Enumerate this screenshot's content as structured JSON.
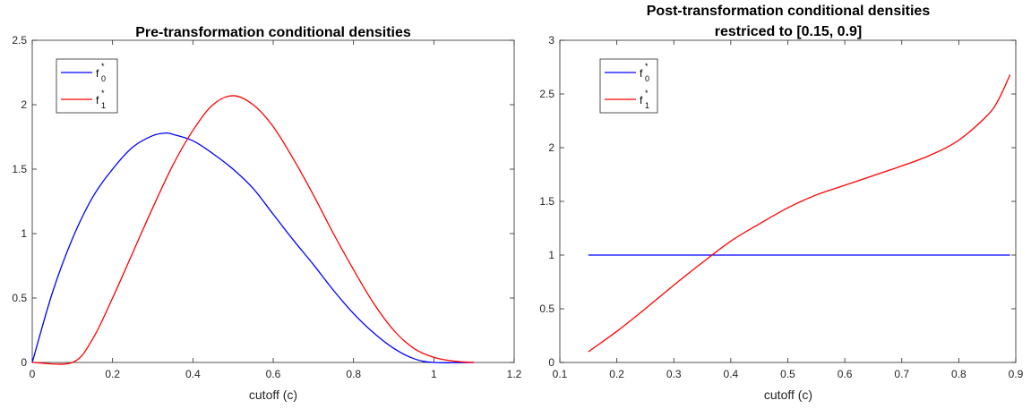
{
  "chart_data": [
    {
      "type": "line",
      "title": "Pre-transformation conditional densities",
      "xlabel": "cutoff (c)",
      "ylabel": "",
      "xlim": [
        0,
        1.2
      ],
      "ylim": [
        0,
        2.5
      ],
      "xticks": [
        "0",
        "0.2",
        "0.4",
        "0.6",
        "0.8",
        "1",
        "1.2"
      ],
      "yticks": [
        "0",
        "0.5",
        "1",
        "1.5",
        "2",
        "2.5"
      ],
      "legend_placement": "top-left",
      "grid": false,
      "series": [
        {
          "name": "f0*",
          "color": "#0000ff",
          "x": [
            0,
            0.05,
            0.1,
            0.15,
            0.2,
            0.25,
            0.3,
            0.333,
            0.35,
            0.4,
            0.45,
            0.5,
            0.55,
            0.6,
            0.65,
            0.7,
            0.75,
            0.8,
            0.85,
            0.9,
            0.95,
            1.0,
            1.1
          ],
          "values": [
            0,
            0.54,
            0.96,
            1.28,
            1.5,
            1.67,
            1.76,
            1.78,
            1.77,
            1.72,
            1.62,
            1.5,
            1.35,
            1.15,
            0.95,
            0.76,
            0.56,
            0.38,
            0.23,
            0.11,
            0.03,
            0,
            0
          ]
        },
        {
          "name": "f1*",
          "color": "#ff0000",
          "x": [
            0,
            0.1,
            0.15,
            0.2,
            0.25,
            0.3,
            0.35,
            0.4,
            0.45,
            0.5,
            0.55,
            0.6,
            0.65,
            0.7,
            0.75,
            0.8,
            0.85,
            0.9,
            0.95,
            1.0,
            1.05,
            1.1
          ],
          "values": [
            0,
            0,
            0.18,
            0.5,
            0.85,
            1.2,
            1.53,
            1.8,
            2.0,
            2.07,
            2.0,
            1.83,
            1.58,
            1.3,
            1.0,
            0.72,
            0.46,
            0.25,
            0.11,
            0.04,
            0.01,
            0
          ]
        }
      ],
      "legend": [
        {
          "base": "f",
          "sup": "*",
          "sub": "0"
        },
        {
          "base": "f",
          "sup": "*",
          "sub": "1"
        }
      ]
    },
    {
      "type": "line",
      "title": "Post-transformation conditional densities",
      "subtitle": "restriced to [0.15, 0.9]",
      "xlabel": "cutoff (c)",
      "ylabel": "",
      "xlim": [
        0.1,
        0.9
      ],
      "ylim": [
        0,
        3
      ],
      "xticks": [
        "0.1",
        "0.2",
        "0.3",
        "0.4",
        "0.5",
        "0.6",
        "0.7",
        "0.8",
        "0.9"
      ],
      "yticks": [
        "0",
        "0.5",
        "1",
        "1.5",
        "2",
        "2.5",
        "3"
      ],
      "legend_placement": "top-left",
      "grid": false,
      "series": [
        {
          "name": "f0*",
          "color": "#0000ff",
          "x": [
            0.15,
            0.89
          ],
          "values": [
            1,
            1
          ]
        },
        {
          "name": "f1*",
          "color": "#ff0000",
          "x": [
            0.15,
            0.2,
            0.25,
            0.3,
            0.35,
            0.4,
            0.45,
            0.5,
            0.55,
            0.6,
            0.65,
            0.7,
            0.75,
            0.8,
            0.85,
            0.87,
            0.89
          ],
          "values": [
            0.1,
            0.29,
            0.5,
            0.72,
            0.93,
            1.13,
            1.29,
            1.44,
            1.56,
            1.65,
            1.74,
            1.83,
            1.93,
            2.07,
            2.3,
            2.45,
            2.68
          ]
        }
      ],
      "legend": [
        {
          "base": "f",
          "sup": "*",
          "sub": "0"
        },
        {
          "base": "f",
          "sup": "*",
          "sub": "1"
        }
      ]
    }
  ]
}
